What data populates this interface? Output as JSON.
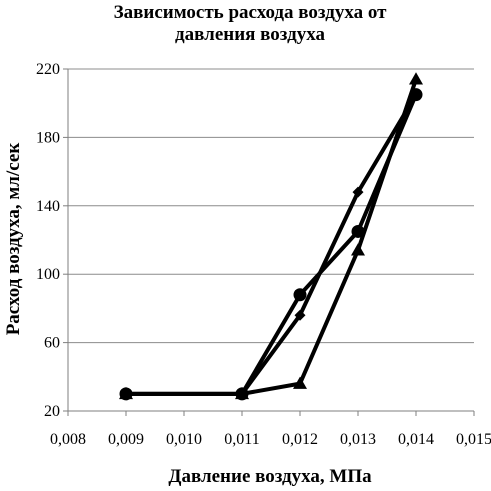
{
  "chart_data": {
    "type": "line",
    "title_lines": [
      "Зависимость расхода воздуха от",
      "давления воздуха"
    ],
    "xlabel": "Давление воздуха, МПа",
    "ylabel": "Расход воздуха, мл/сек",
    "xlim": [
      0.008,
      0.015
    ],
    "ylim": [
      20,
      220
    ],
    "x_ticks": [
      "0,008",
      "0,009",
      "0,010",
      "0,011",
      "0,012",
      "0,013",
      "0,014",
      "0,015"
    ],
    "x_tick_values": [
      0.008,
      0.009,
      0.01,
      0.011,
      0.012,
      0.013,
      0.014,
      0.015
    ],
    "y_ticks": [
      "20",
      "60",
      "100",
      "140",
      "180",
      "220"
    ],
    "y_tick_values": [
      20,
      60,
      100,
      140,
      180,
      220
    ],
    "grid": "horizontal",
    "series": [
      {
        "marker": "circle",
        "x": [
          0.009,
          0.011,
          0.012,
          0.013,
          0.014
        ],
        "y": [
          30,
          30,
          88,
          125,
          205
        ]
      },
      {
        "marker": "diamond",
        "x": [
          0.009,
          0.011,
          0.012,
          0.013,
          0.014
        ],
        "y": [
          30,
          30,
          76,
          148,
          205
        ]
      },
      {
        "marker": "triangle",
        "x": [
          0.009,
          0.011,
          0.012,
          0.013,
          0.014
        ],
        "y": [
          30,
          30,
          36,
          114,
          214
        ]
      }
    ],
    "colors": {
      "line": "#000000",
      "grid": "#8c8c8c",
      "axis": "#7f7f7f"
    }
  }
}
